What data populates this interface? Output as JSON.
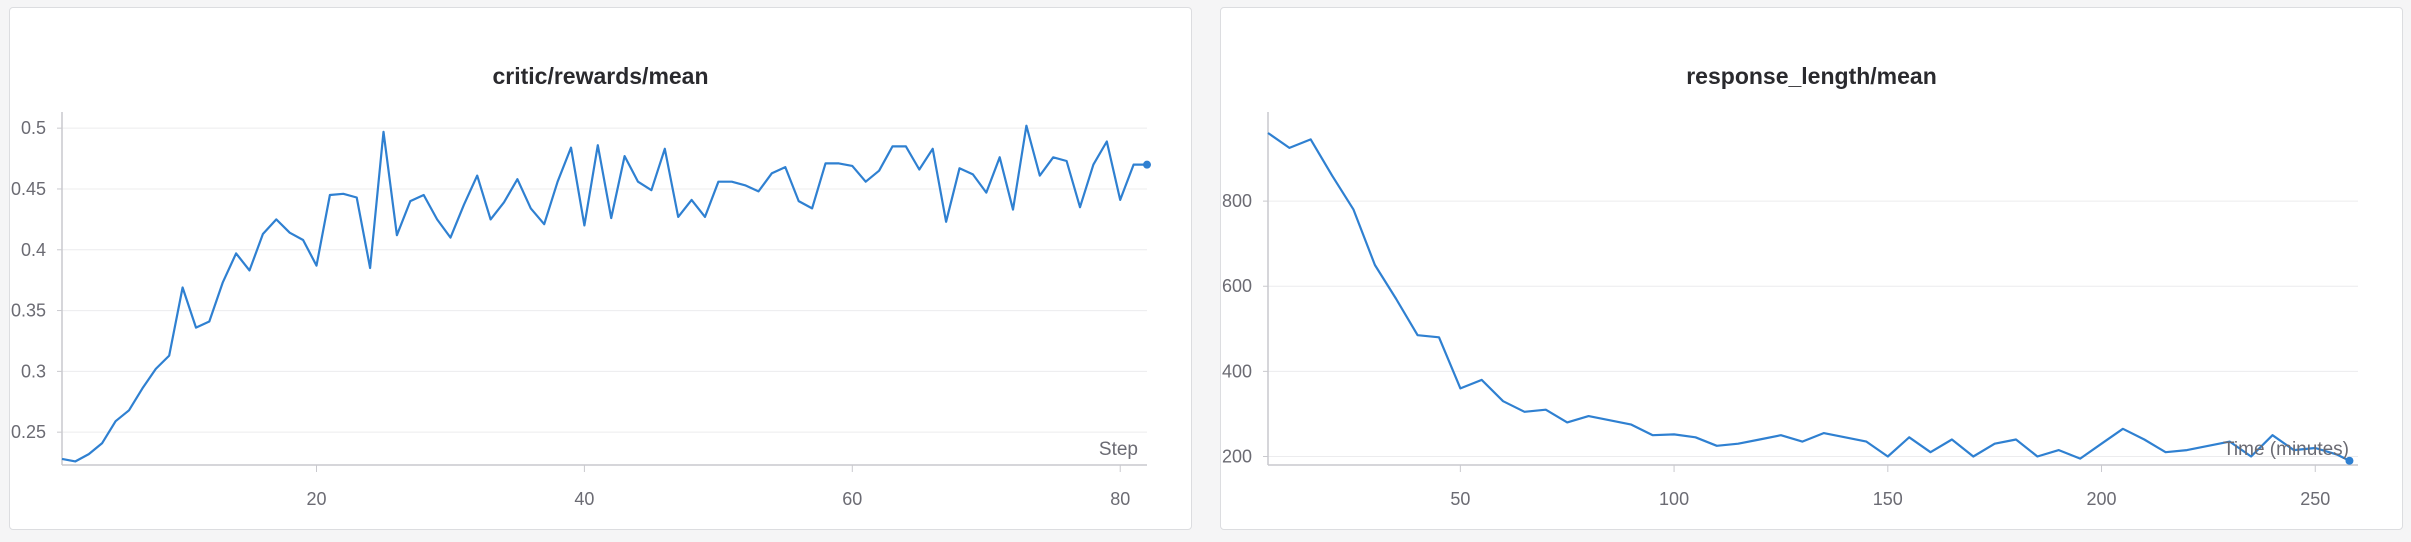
{
  "chart_data": [
    {
      "type": "line",
      "title": "critic/rewards/mean",
      "xlabel": "Step",
      "ylabel": "",
      "xlim": [
        1,
        82
      ],
      "ylim": [
        0.223,
        0.51
      ],
      "x_ticks": [
        20,
        40,
        60,
        80
      ],
      "y_ticks": [
        0.25,
        0.3,
        0.35,
        0.4,
        0.45,
        0.5
      ],
      "y_tick_labels": [
        "0.25",
        "0.3",
        "0.35",
        "0.4",
        "0.45",
        "0.5"
      ],
      "grid": "horizontal",
      "line_color": "#2f80d1",
      "x": [
        1,
        2,
        3,
        4,
        5,
        6,
        7,
        8,
        9,
        10,
        11,
        12,
        13,
        14,
        15,
        16,
        17,
        18,
        19,
        20,
        21,
        22,
        23,
        24,
        25,
        26,
        27,
        28,
        29,
        30,
        31,
        32,
        33,
        34,
        35,
        36,
        37,
        38,
        39,
        40,
        41,
        42,
        43,
        44,
        45,
        46,
        47,
        48,
        49,
        50,
        51,
        52,
        53,
        54,
        55,
        56,
        57,
        58,
        59,
        60,
        61,
        62,
        63,
        64,
        65,
        66,
        67,
        68,
        69,
        70,
        71,
        72,
        73,
        74,
        75,
        76,
        77,
        78,
        79,
        80,
        81,
        82
      ],
      "values": [
        0.228,
        0.226,
        0.232,
        0.241,
        0.259,
        0.268,
        0.286,
        0.302,
        0.313,
        0.369,
        0.336,
        0.341,
        0.373,
        0.397,
        0.383,
        0.413,
        0.425,
        0.414,
        0.408,
        0.387,
        0.445,
        0.446,
        0.443,
        0.385,
        0.497,
        0.412,
        0.44,
        0.445,
        0.425,
        0.41,
        0.437,
        0.461,
        0.425,
        0.439,
        0.458,
        0.434,
        0.421,
        0.456,
        0.484,
        0.42,
        0.486,
        0.426,
        0.477,
        0.456,
        0.449,
        0.483,
        0.427,
        0.441,
        0.427,
        0.456,
        0.456,
        0.453,
        0.448,
        0.463,
        0.468,
        0.44,
        0.434,
        0.471,
        0.471,
        0.469,
        0.456,
        0.465,
        0.485,
        0.485,
        0.466,
        0.483,
        0.423,
        0.467,
        0.462,
        0.447,
        0.476,
        0.433,
        0.502,
        0.461,
        0.476,
        0.473,
        0.435,
        0.47,
        0.489,
        0.441,
        0.47,
        0.47
      ],
      "last_point_marker": true
    },
    {
      "type": "line",
      "title": "response_length/mean",
      "xlabel": "Time (minutes)",
      "ylabel": "",
      "xlim": [
        5,
        260
      ],
      "ylim": [
        180,
        1000
      ],
      "x_ticks": [
        50,
        100,
        150,
        200,
        250
      ],
      "y_ticks": [
        200,
        400,
        600,
        800
      ],
      "y_tick_labels": [
        "200",
        "400",
        "600",
        "800"
      ],
      "grid": "horizontal",
      "line_color": "#2f80d1",
      "x": [
        5,
        10,
        15,
        20,
        25,
        30,
        35,
        40,
        45,
        50,
        55,
        60,
        65,
        70,
        75,
        80,
        85,
        90,
        95,
        100,
        105,
        110,
        115,
        120,
        125,
        130,
        135,
        140,
        145,
        150,
        155,
        160,
        165,
        170,
        175,
        180,
        185,
        190,
        195,
        200,
        205,
        210,
        215,
        220,
        225,
        230,
        235,
        240,
        245,
        250,
        255,
        258
      ],
      "values": [
        960,
        925,
        945,
        860,
        780,
        650,
        570,
        485,
        480,
        360,
        380,
        330,
        305,
        310,
        280,
        295,
        285,
        275,
        250,
        252,
        245,
        225,
        230,
        240,
        250,
        235,
        255,
        245,
        235,
        200,
        245,
        210,
        240,
        200,
        230,
        240,
        200,
        215,
        195,
        230,
        265,
        240,
        210,
        215,
        225,
        235,
        200,
        250,
        215,
        220,
        205,
        190
      ],
      "last_point_marker": true
    }
  ]
}
